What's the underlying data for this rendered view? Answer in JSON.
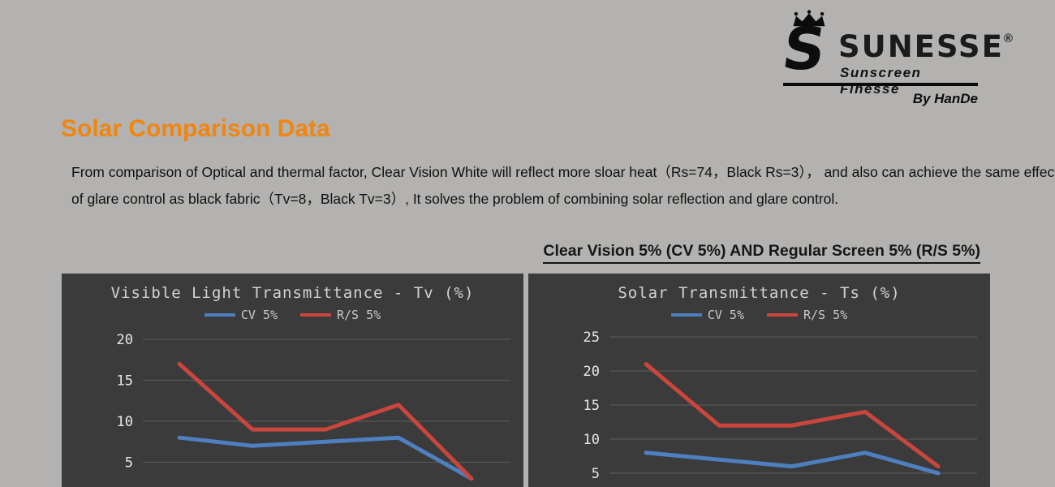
{
  "colors": {
    "page_bg": "#b3b2b0",
    "panel_bg": "#3b3b3b",
    "accent_orange": "#f08510",
    "series_blue": "#4e7fbe",
    "series_red": "#c9463d"
  },
  "logo": {
    "monogram": "S",
    "brand": "SUNESSE",
    "registered": "®",
    "tagline": "Sunscreen Finesse",
    "byline": "By HanDe"
  },
  "header": {
    "title": "Solar Comparison Data"
  },
  "intro": {
    "line1": "From comparison of Optical and thermal factor, Clear Vision White will reflect more sloar heat（Rs=74，Black Rs=3）， and also can achieve the same effect",
    "line2": "of glare control as black fabric（Tv=8，Black Tv=3）, It solves the problem of combining solar reflection and glare control."
  },
  "subtitle": "Clear Vision 5% (CV 5%) AND Regular Screen 5% (R/S 5%)",
  "chart_data": [
    {
      "type": "line",
      "title": "Visible Light Transmittance - Tv (%)",
      "categories": [
        "",
        "",
        "",
        "",
        ""
      ],
      "series": [
        {
          "name": "CV 5%",
          "color": "#4e7fbe",
          "values": [
            8,
            7,
            7.5,
            8,
            3
          ]
        },
        {
          "name": "R/S 5%",
          "color": "#c9463d",
          "values": [
            17,
            9,
            9,
            12,
            3
          ]
        }
      ],
      "y_ticks": [
        20,
        15,
        10,
        5
      ],
      "ylim": [
        0,
        20
      ],
      "grid": true,
      "legend_position": "top"
    },
    {
      "type": "line",
      "title": "Solar Transmittance - Ts (%)",
      "categories": [
        "",
        "",
        "",
        "",
        ""
      ],
      "series": [
        {
          "name": "CV 5%",
          "color": "#4e7fbe",
          "values": [
            8,
            7,
            6,
            8,
            5
          ]
        },
        {
          "name": "R/S 5%",
          "color": "#c9463d",
          "values": [
            21,
            12,
            12,
            14,
            6
          ]
        }
      ],
      "y_ticks": [
        25,
        20,
        15,
        10,
        5
      ],
      "ylim": [
        0,
        25
      ],
      "grid": true,
      "legend_position": "top"
    }
  ]
}
